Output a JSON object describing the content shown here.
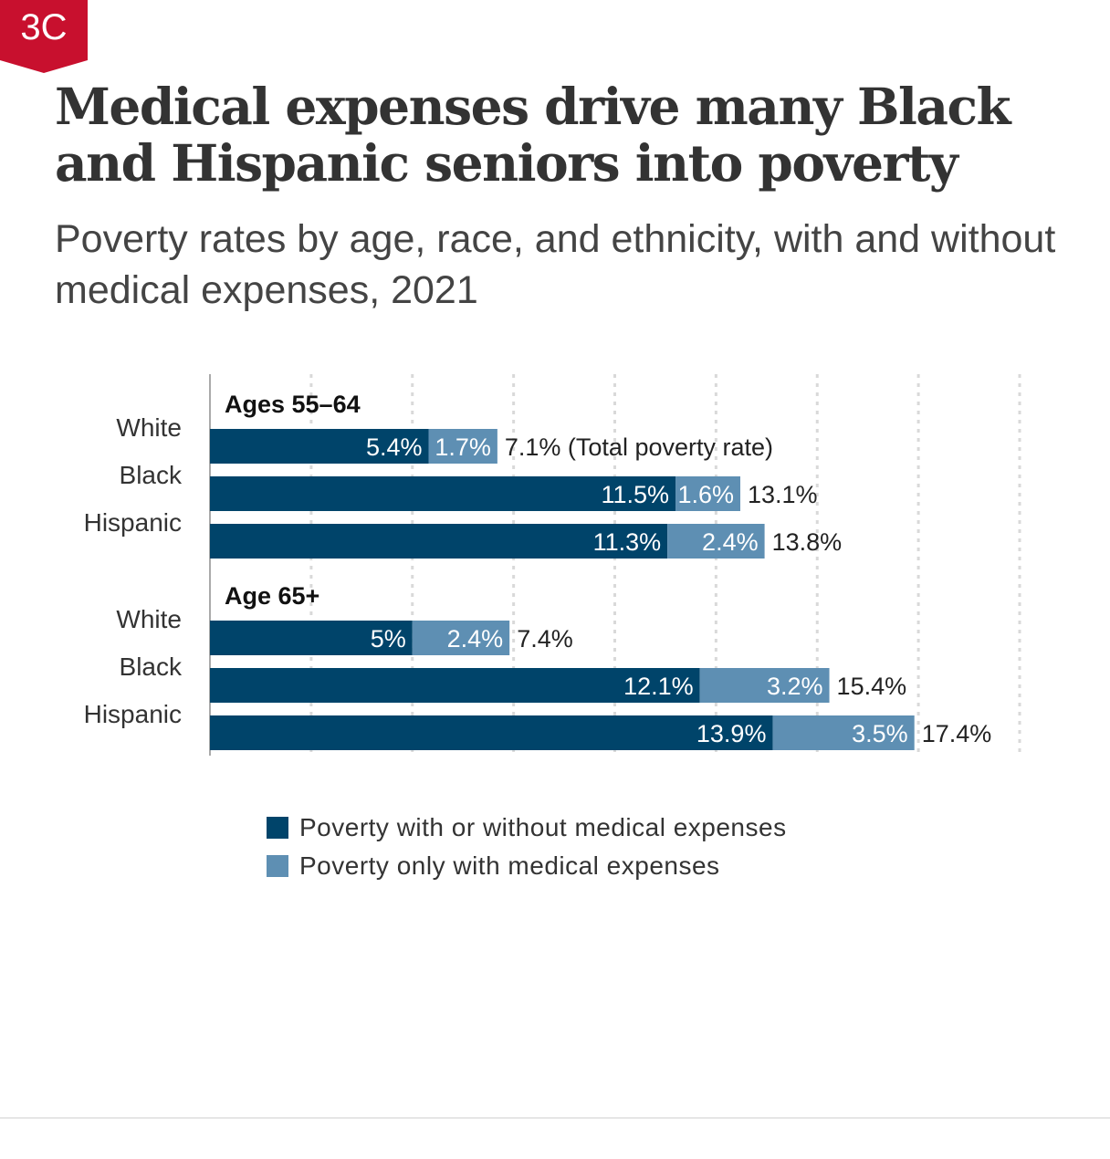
{
  "badge": {
    "text": "3C",
    "color": "#c8102e"
  },
  "title": "Medical expenses drive many Black and Hispanic seniors into poverty",
  "subtitle": "Poverty rates by age, race, and ethnicity, with and without medical expenses, 2021",
  "colors": {
    "dark": "#00446a",
    "light": "#5e8fb3"
  },
  "chart_data": {
    "type": "bar",
    "orientation": "horizontal",
    "stacked": true,
    "xlim": [
      0,
      20
    ],
    "grid": true,
    "legend_placement": "bottom",
    "series": [
      {
        "name": "Poverty with or without medical expenses",
        "color": "#00446a"
      },
      {
        "name": "Poverty only with medical expenses",
        "color": "#5e8fb3"
      }
    ],
    "groups": [
      {
        "label": "Ages 55–64",
        "rows": [
          {
            "category": "White",
            "values": [
              5.4,
              1.7
            ],
            "labels": [
              "5.4%",
              "1.7%"
            ],
            "total": "7.1% (Total poverty rate)"
          },
          {
            "category": "Black",
            "values": [
              11.5,
              1.6
            ],
            "labels": [
              "11.5%",
              "1.6%"
            ],
            "total": "13.1%"
          },
          {
            "category": "Hispanic",
            "values": [
              11.3,
              2.4
            ],
            "labels": [
              "11.3%",
              "2.4%"
            ],
            "total": "13.8%"
          }
        ]
      },
      {
        "label": "Age 65+",
        "rows": [
          {
            "category": "White",
            "values": [
              5.0,
              2.4
            ],
            "labels": [
              "5%",
              "2.4%"
            ],
            "total": "7.4%"
          },
          {
            "category": "Black",
            "values": [
              12.1,
              3.2
            ],
            "labels": [
              "12.1%",
              "3.2%"
            ],
            "total": "15.4%"
          },
          {
            "category": "Hispanic",
            "values": [
              13.9,
              3.5
            ],
            "labels": [
              "13.9%",
              "3.5%"
            ],
            "total": "17.4%"
          }
        ]
      }
    ]
  },
  "legend": [
    {
      "label": "Poverty with or without medical expenses",
      "color": "#00446a"
    },
    {
      "label": "Poverty only with medical expenses",
      "color": "#5e8fb3"
    }
  ]
}
